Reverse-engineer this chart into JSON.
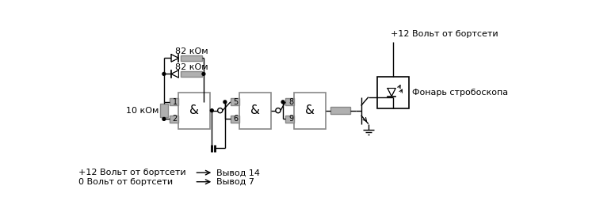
{
  "bg_color": "#ffffff",
  "line_color": "#000000",
  "gray_color": "#888888",
  "light_gray": "#b0b0b0",
  "fig_width": 7.47,
  "fig_height": 2.78,
  "labels": {
    "r1_top": "82 кОм",
    "r2_bot": "82 кОм",
    "r3": "10 кОм",
    "v12_top": "+12 Вольт от бортсети",
    "lamp": "Фонарь стробоскопа",
    "pin12": "+12 Вольт от бортсети",
    "pin0": "0 Вольт от бортсети",
    "out14": "Вывод 14",
    "out7": "Вывод 7"
  }
}
